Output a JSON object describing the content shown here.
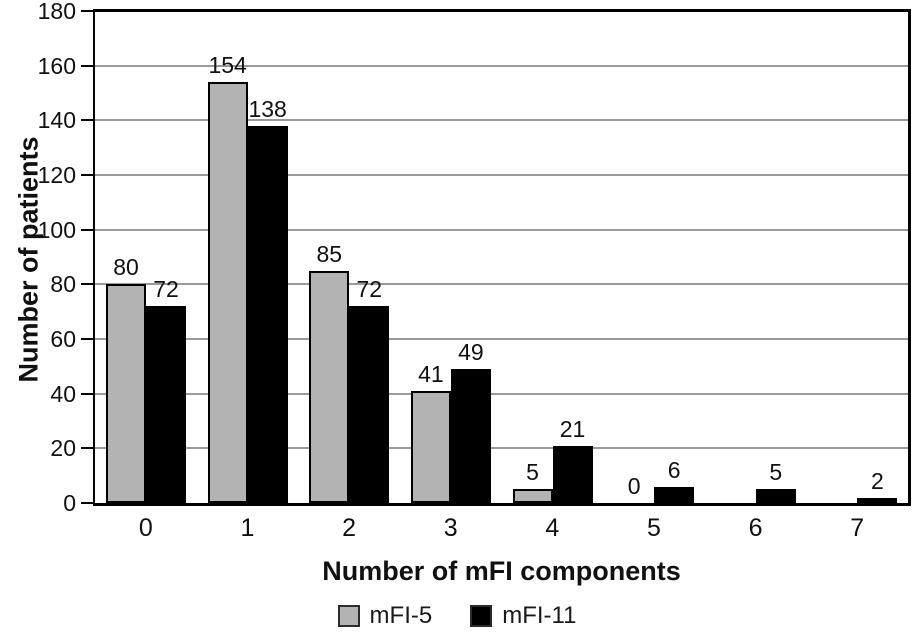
{
  "figure": {
    "background": "#ffffff",
    "text_color": "#111111",
    "frame_color": "#000000"
  },
  "chart_data": {
    "type": "bar",
    "title": "",
    "categories": [
      "0",
      "1",
      "2",
      "3",
      "4",
      "5",
      "6",
      "7"
    ],
    "series": [
      {
        "name": "mFI-5",
        "color": "#b3b3b3",
        "border_color": "#000000",
        "values": [
          80,
          154,
          85,
          41,
          5,
          0,
          null,
          null
        ]
      },
      {
        "name": "mFI-11",
        "color": "#000000",
        "border_color": "#000000",
        "values": [
          72,
          138,
          72,
          49,
          21,
          6,
          5,
          2
        ]
      }
    ],
    "xlabel": "Number of mFI components",
    "ylabel": "Number of patients",
    "ylim": [
      0,
      180
    ],
    "yticks": [
      0,
      20,
      40,
      60,
      80,
      100,
      120,
      140,
      160,
      180
    ],
    "ytick_step": 20,
    "grid": true,
    "gridline_color": "#9a9a9a",
    "data_labels": true,
    "legend_position": "bottom"
  }
}
